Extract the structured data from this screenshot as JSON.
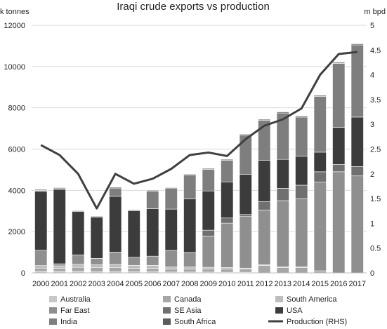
{
  "chart_data": {
    "type": "bar",
    "title": "Iraqi crude exports vs production",
    "ylabel": "k tonnes",
    "y2label": "m bpd",
    "ylim": [
      0,
      12000
    ],
    "y2lim": [
      0,
      5
    ],
    "yticks": [
      0,
      2000,
      4000,
      6000,
      8000,
      10000,
      12000
    ],
    "y2ticks": [
      0,
      0.5,
      1,
      1.5,
      2,
      2.5,
      3,
      3.5,
      4,
      4.5,
      5
    ],
    "grid": true,
    "legend_position": "bottom",
    "categories": [
      "2000",
      "2001",
      "2002",
      "2003",
      "2004",
      "2005",
      "2006",
      "2007",
      "2008",
      "2009",
      "2010",
      "2011",
      "2012",
      "2013",
      "2014",
      "2015",
      "2016",
      "2017"
    ],
    "series": [
      {
        "name": "Australia",
        "kind": "bar",
        "color": "#c8c8c8",
        "values": [
          80,
          70,
          70,
          50,
          60,
          60,
          60,
          40,
          40,
          40,
          30,
          30,
          0,
          0,
          0,
          0,
          0,
          0
        ]
      },
      {
        "name": "Canada",
        "kind": "bar",
        "color": "#a6a6a6",
        "values": [
          150,
          150,
          200,
          200,
          200,
          150,
          150,
          150,
          150,
          150,
          150,
          150,
          350,
          250,
          250,
          100,
          0,
          0
        ]
      },
      {
        "name": "South America",
        "kind": "bar",
        "color": "#bdbdbd",
        "values": [
          120,
          120,
          150,
          150,
          150,
          150,
          150,
          100,
          100,
          80,
          80,
          50,
          50,
          50,
          50,
          0,
          0,
          0
        ]
      },
      {
        "name": "Far East",
        "kind": "bar",
        "color": "#8f8f8f",
        "values": [
          750,
          100,
          450,
          300,
          600,
          400,
          450,
          800,
          700,
          1500,
          2150,
          2500,
          2650,
          3200,
          3300,
          4300,
          4900,
          4700
        ]
      },
      {
        "name": "SE Asia",
        "kind": "bar",
        "color": "#707070",
        "values": [
          0,
          0,
          0,
          0,
          0,
          0,
          0,
          0,
          0,
          300,
          250,
          100,
          400,
          600,
          650,
          500,
          350,
          450
        ]
      },
      {
        "name": "USA",
        "kind": "bar",
        "color": "#3c3c3c",
        "values": [
          2850,
          3600,
          2100,
          2000,
          2700,
          2250,
          2300,
          2000,
          2600,
          1900,
          1750,
          1950,
          2000,
          1400,
          1400,
          950,
          1800,
          2400
        ]
      },
      {
        "name": "India",
        "kind": "bar",
        "color": "#7e7e7e",
        "values": [
          50,
          50,
          0,
          0,
          400,
          0,
          850,
          1000,
          1150,
          1050,
          1050,
          1900,
          1950,
          2250,
          1900,
          2700,
          3100,
          3500
        ]
      },
      {
        "name": "South Africa",
        "kind": "bar",
        "color": "#5a5a5a",
        "values": [
          40,
          40,
          40,
          40,
          40,
          40,
          40,
          40,
          40,
          40,
          40,
          40,
          40,
          50,
          50,
          50,
          50,
          50
        ]
      },
      {
        "name": "Production (RHS)",
        "kind": "line",
        "axis": "right",
        "color": "#404040",
        "values": [
          2.58,
          2.38,
          2.0,
          1.3,
          2.0,
          1.8,
          1.9,
          2.1,
          2.38,
          2.43,
          2.36,
          2.7,
          2.97,
          3.1,
          3.32,
          4.0,
          4.42,
          4.46
        ]
      }
    ]
  }
}
